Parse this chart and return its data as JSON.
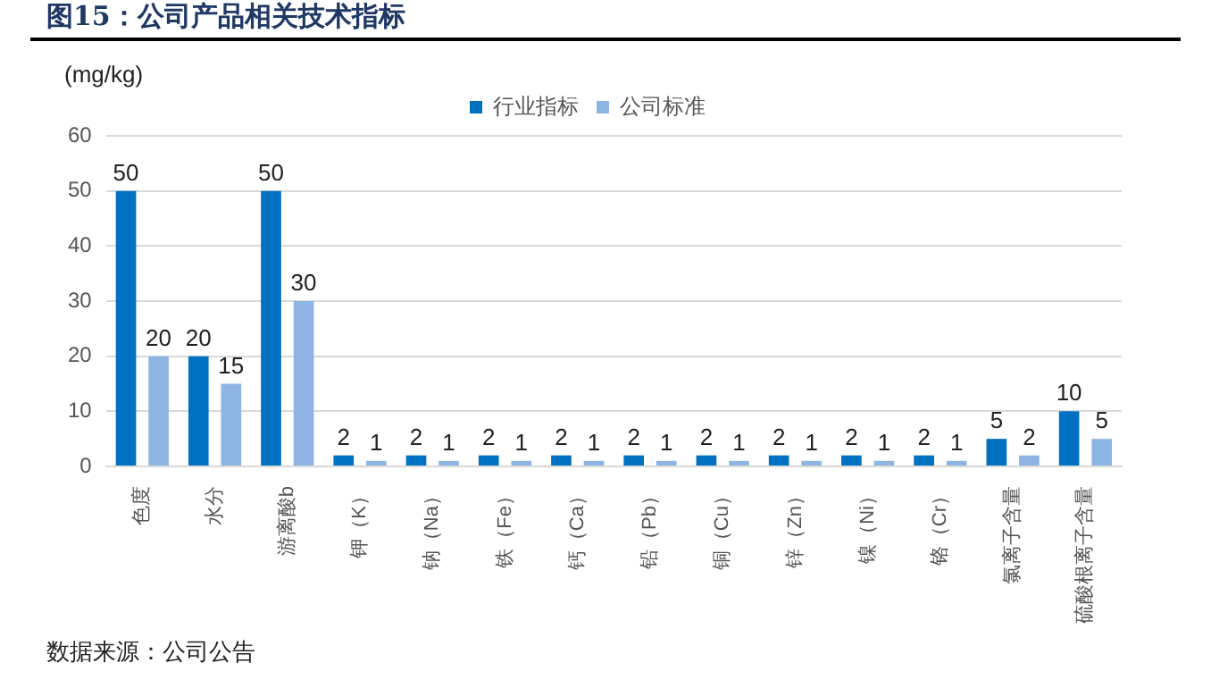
{
  "chart_data": {
    "type": "bar",
    "title": "图15：公司产品相关技术指标",
    "ylabel": "(mg/kg)",
    "annotations": [
      "数据来源：公司公告"
    ],
    "categories": [
      "色度",
      "水分",
      "游离酸b",
      "钾（K）",
      "钠（Na）",
      "铁（Fe）",
      "钙（Ca）",
      "铅（Pb）",
      "铜（Cu）",
      "锌（Zn）",
      "镍（Ni）",
      "铬（Cr）",
      "氯离子含量",
      "硫酸根离子含量"
    ],
    "series": [
      {
        "name": "行业指标",
        "color": "#0070c0",
        "values": [
          50,
          20,
          50,
          2,
          2,
          2,
          2,
          2,
          2,
          2,
          2,
          2,
          5,
          10
        ]
      },
      {
        "name": "公司标准",
        "color": "#8db4e2",
        "values": [
          20,
          15,
          30,
          1,
          1,
          1,
          1,
          1,
          1,
          1,
          1,
          1,
          2,
          5
        ]
      }
    ],
    "ylim": [
      0,
      60
    ],
    "yticks": [
      0,
      10,
      20,
      30,
      40,
      50,
      60
    ],
    "grid": "y",
    "legend": "top",
    "data_labels": true
  }
}
